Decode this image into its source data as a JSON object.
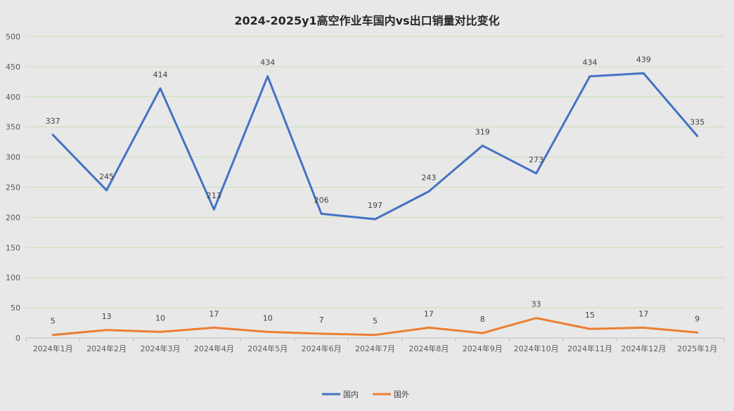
{
  "chart_data": {
    "type": "line",
    "title": "2024-2025y1高空作业车国内vs出口销量对比变化",
    "xlabel": "",
    "ylabel": "",
    "categories": [
      "2024年1月",
      "2024年2月",
      "2024年3月",
      "2024年4月",
      "2024年5月",
      "2024年6月",
      "2024年7月",
      "2024年8月",
      "2024年9月",
      "2024年10月",
      "2024年11月",
      "2024年12月",
      "2025年1月"
    ],
    "series": [
      {
        "name": "国内",
        "color": "#4472c4",
        "values": [
          337,
          245,
          414,
          213,
          434,
          206,
          197,
          243,
          319,
          273,
          434,
          439,
          335
        ]
      },
      {
        "name": "国外",
        "color": "#ed7d31",
        "values": [
          5,
          13,
          10,
          17,
          10,
          7,
          5,
          17,
          8,
          33,
          15,
          17,
          9
        ]
      }
    ],
    "ylim": [
      0,
      500
    ],
    "yticks": [
      0,
      50,
      100,
      150,
      200,
      250,
      300,
      350,
      400,
      450,
      500
    ],
    "grid": true,
    "gridline_color": "#c6e0b4",
    "legend_position": "bottom-center"
  }
}
